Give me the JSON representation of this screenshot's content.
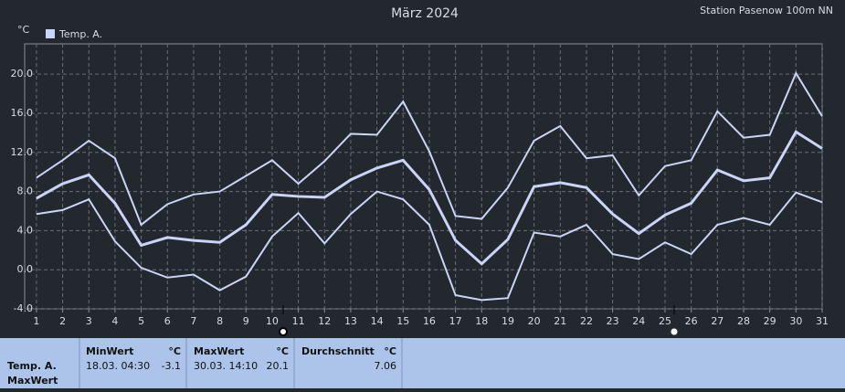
{
  "chart_data": {
    "type": "line",
    "title": "März 2024",
    "subtitle": "Station Pasenow 100m NN",
    "y_label": "°C",
    "x": [
      1,
      2,
      3,
      4,
      5,
      6,
      7,
      8,
      9,
      10,
      11,
      12,
      13,
      14,
      15,
      16,
      17,
      18,
      19,
      20,
      21,
      22,
      23,
      24,
      25,
      26,
      27,
      28,
      29,
      30,
      31
    ],
    "series": [
      {
        "name": "Temp. A.",
        "color": "#c8d4f8",
        "width": 3,
        "values": [
          7.3,
          8.8,
          9.7,
          6.8,
          2.5,
          3.3,
          3.0,
          2.8,
          4.6,
          7.7,
          7.5,
          7.4,
          9.2,
          10.4,
          11.2,
          8.2,
          3.0,
          0.6,
          3.1,
          8.5,
          8.9,
          8.4,
          5.7,
          3.7,
          5.6,
          6.8,
          10.2,
          9.1,
          9.4,
          14.1,
          12.4
        ]
      },
      {
        "color": "#c8d4f8",
        "width": 2,
        "values": [
          9.4,
          11.2,
          13.2,
          11.4,
          4.6,
          6.7,
          7.7,
          8.0,
          9.6,
          11.2,
          8.8,
          11.1,
          13.9,
          13.8,
          17.2,
          12.1,
          5.5,
          5.2,
          8.4,
          13.2,
          14.7,
          11.4,
          11.7,
          7.6,
          10.6,
          11.2,
          16.2,
          13.5,
          13.8,
          20.1,
          15.7
        ]
      },
      {
        "color": "#c8d4f8",
        "width": 2,
        "values": [
          5.7,
          6.1,
          7.2,
          2.9,
          0.2,
          -0.8,
          -0.5,
          -2.1,
          -0.7,
          3.4,
          5.8,
          2.7,
          5.7,
          8.0,
          7.2,
          4.6,
          -2.6,
          -3.1,
          -2.9,
          3.8,
          3.4,
          4.6,
          1.6,
          1.1,
          2.8,
          1.6,
          4.6,
          5.3,
          4.6,
          7.9,
          6.9
        ]
      }
    ],
    "xlim": [
      0.55,
      31
    ],
    "xticks": [
      1,
      2,
      3,
      4,
      5,
      6,
      7,
      8,
      9,
      10,
      11,
      12,
      13,
      14,
      15,
      16,
      17,
      18,
      19,
      20,
      21,
      22,
      23,
      24,
      25,
      26,
      27,
      28,
      29,
      30,
      31
    ],
    "ylim": [
      -4,
      23.1
    ],
    "yticks": [
      {
        "value": -4,
        "label": "-4.0"
      },
      {
        "value": 0,
        "label": "0.0"
      },
      {
        "value": 4,
        "label": "4.0"
      },
      {
        "value": 8,
        "label": "8.0"
      },
      {
        "value": 12,
        "label": "12.0"
      },
      {
        "value": 16,
        "label": "16.0"
      },
      {
        "value": 20,
        "label": "20.0"
      }
    ],
    "grid": true
  },
  "summary": {
    "series_label": "Temp. A.",
    "series_sub": "MaxWert",
    "min": {
      "label": "MinWert",
      "unit": "°C",
      "time": "18.03.  04:30",
      "value": "-3.1"
    },
    "max": {
      "label": "MaxWert",
      "unit": "°C",
      "time": "30.03.  14:10",
      "value": "20.1"
    },
    "avg": {
      "label": "Durchschnitt",
      "unit": "°C",
      "value": "7.06"
    }
  }
}
